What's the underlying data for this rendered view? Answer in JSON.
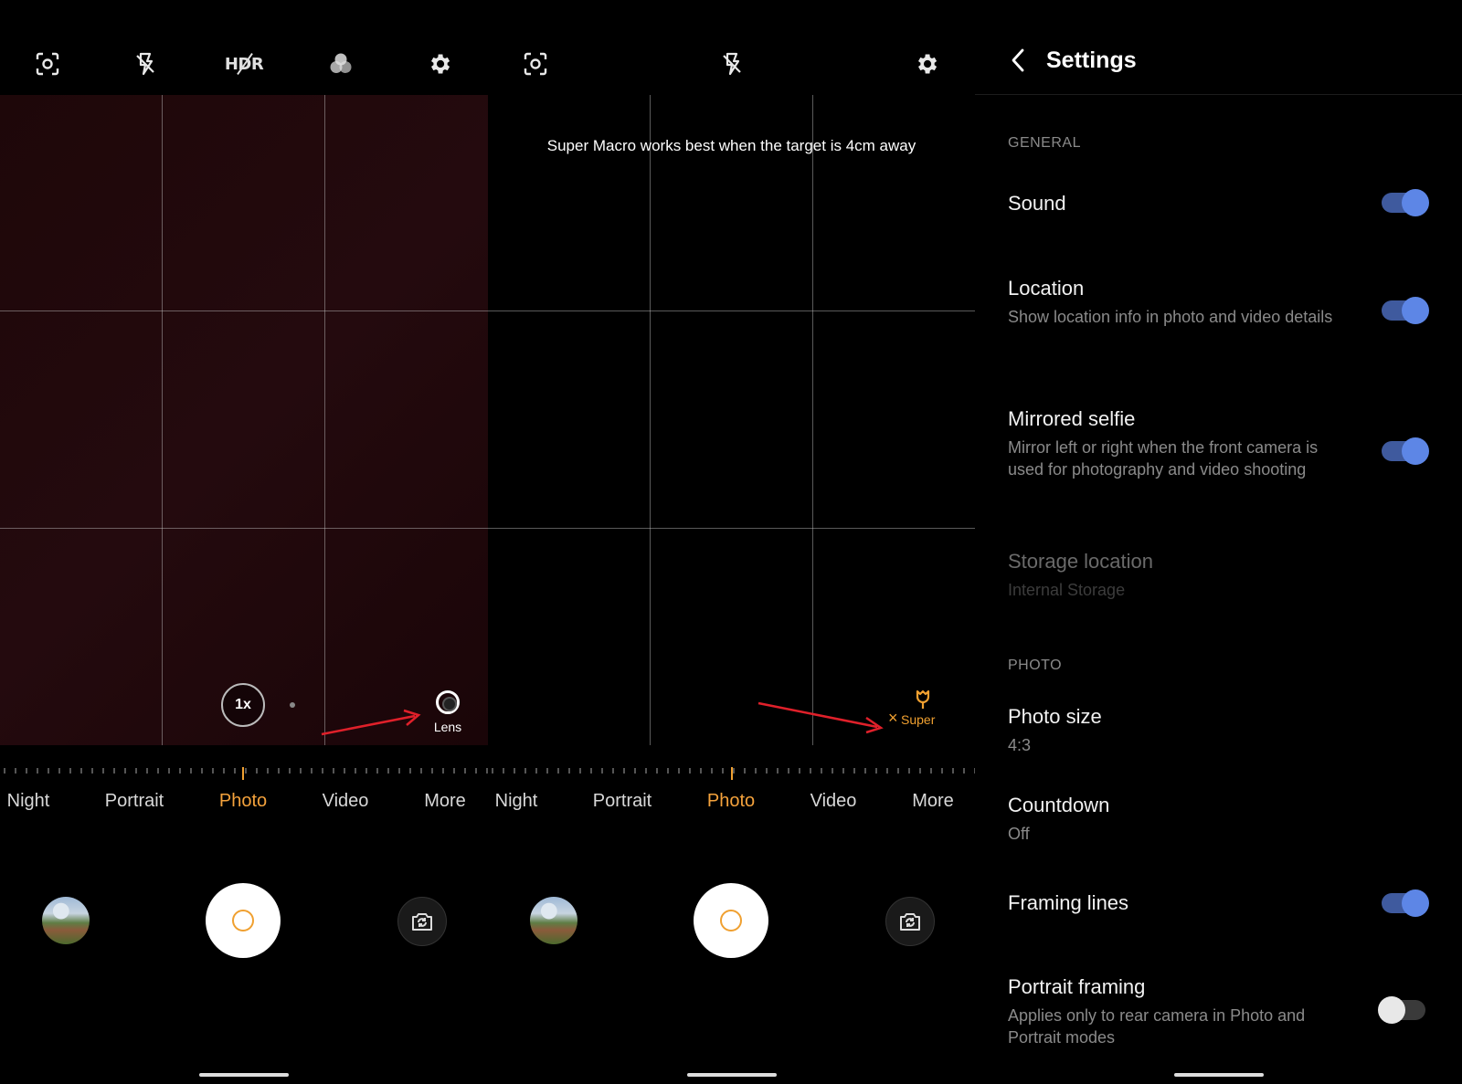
{
  "camera_panels": [
    {
      "top_icons": [
        "face-detect-icon",
        "flash-off-icon",
        "hdr-off-icon",
        "filter-icon",
        "settings-gear-icon"
      ],
      "hdr_label": "HDR",
      "zoom_label": "1x",
      "lens_label": "Lens",
      "modes": [
        "Night",
        "Portrait",
        "Photo",
        "Video",
        "More"
      ],
      "active_mode": "Photo"
    },
    {
      "top_icons": [
        "face-detect-icon",
        "flash-off-icon",
        "settings-gear-icon"
      ],
      "hint": "Super Macro works best when the target is 4cm away",
      "macro_close": "×",
      "macro_label": "Super",
      "modes": [
        "Night",
        "Portrait",
        "Photo",
        "Video",
        "More"
      ],
      "active_mode": "Photo"
    }
  ],
  "settings": {
    "title": "Settings",
    "sections": {
      "general": "GENERAL",
      "photo": "PHOTO"
    },
    "rows": {
      "sound": {
        "title": "Sound",
        "toggle": true
      },
      "location": {
        "title": "Location",
        "subtitle": "Show location info in photo and video details",
        "toggle": true
      },
      "mirrored": {
        "title": "Mirrored selfie",
        "subtitle": "Mirror left or right when the front camera is used for photography and video shooting",
        "toggle": true
      },
      "storage": {
        "title": "Storage location",
        "subtitle": "Internal Storage",
        "disabled": true
      },
      "photo_size": {
        "title": "Photo size",
        "subtitle": "4:3"
      },
      "countdown": {
        "title": "Countdown",
        "subtitle": "Off"
      },
      "framing": {
        "title": "Framing lines",
        "toggle": true
      },
      "portrait_framing": {
        "title": "Portrait framing",
        "subtitle": "Applies only to rear camera in Photo and Portrait modes",
        "toggle": false
      }
    }
  },
  "colors": {
    "accent": "#f4a23c",
    "toggle_on": "#5d86e6",
    "annotation_arrow": "#e0202a"
  }
}
